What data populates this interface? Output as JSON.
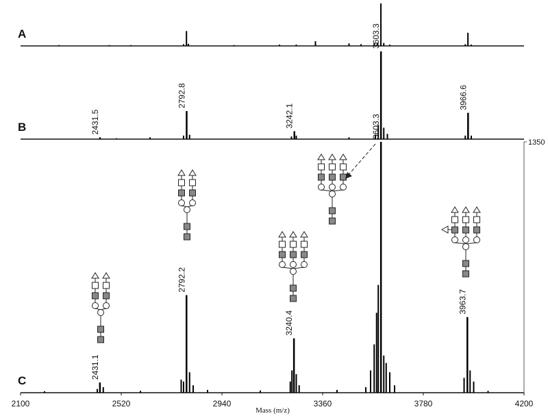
{
  "chart_data": [
    {
      "type": "spectrum",
      "title": "A",
      "ylim": [
        0,
        100
      ],
      "x": [],
      "values": [],
      "minor_x": [
        2260,
        2470,
        2560,
        2780,
        2792,
        2800,
        2990,
        3180,
        3250,
        3330,
        3470,
        3520,
        3575,
        3590,
        3603,
        3615,
        3640,
        3955,
        3966,
        3980
      ],
      "minor_values": [
        2,
        2,
        2,
        4,
        35,
        5,
        2,
        3,
        3,
        11,
        6,
        4,
        6,
        8,
        100,
        7,
        3,
        4,
        31,
        3
      ]
    },
    {
      "type": "spectrum",
      "title": "B",
      "ylim": [
        0,
        100
      ],
      "x": [
        2431.5,
        2792.8,
        3242.1,
        3603.3,
        3966.6
      ],
      "values": [
        2,
        32,
        9,
        100,
        30
      ],
      "minor_x": [
        2500,
        2640,
        2780,
        2805,
        3230,
        3250,
        3470,
        3580,
        3592,
        3615,
        3630,
        3955,
        3980
      ],
      "minor_values": [
        1,
        2,
        4,
        5,
        3,
        4,
        2,
        5,
        16,
        13,
        6,
        4,
        4
      ]
    },
    {
      "type": "spectrum",
      "title": "C",
      "ylim": [
        0,
        1350
      ],
      "yticks": [
        1350
      ],
      "xlim": [
        2100,
        4200
      ],
      "xticks": [
        2100,
        2520,
        2940,
        3360,
        3780,
        4200
      ],
      "xlabel": "Mass (m/z)",
      "x": [
        2431.1,
        2792.2,
        3240.4,
        3603.3,
        3963.7
      ],
      "values": [
        55,
        525,
        293,
        1350,
        407
      ],
      "minor_x": [
        2200,
        2420,
        2445,
        2600,
        2770,
        2780,
        2805,
        2820,
        2880,
        3100,
        3225,
        3232,
        3250,
        3262,
        3420,
        3540,
        3560,
        3575,
        3585,
        3592,
        3615,
        3625,
        3640,
        3660,
        3950,
        3975,
        3990,
        4050
      ],
      "minor_values": [
        8,
        20,
        30,
        10,
        70,
        60,
        110,
        40,
        15,
        12,
        60,
        120,
        100,
        40,
        15,
        30,
        120,
        260,
        430,
        580,
        200,
        160,
        110,
        40,
        80,
        120,
        60,
        10
      ]
    }
  ]
}
